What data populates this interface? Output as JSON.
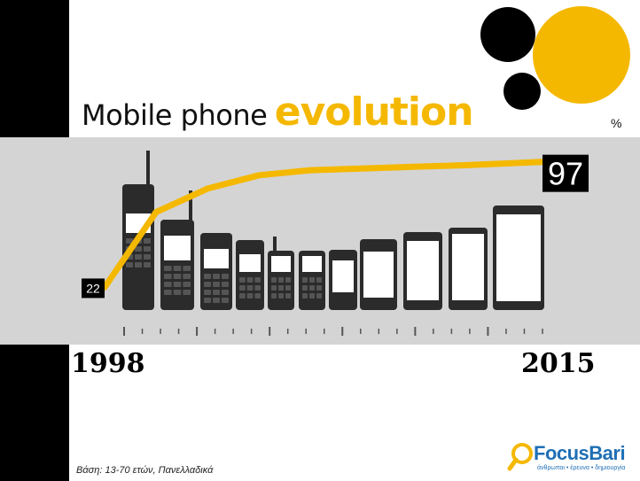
{
  "title": {
    "part1": "Mobile phone",
    "part2": "evolution"
  },
  "unit": "%",
  "footnote": "Βάση: 13-70 ετών, Πανελλαδικά",
  "logo": {
    "name": "FocusBari",
    "tagline": "άνθρωποι • έρευνα • δημιουργία"
  },
  "colors": {
    "accent": "#f5b800",
    "band": "#d4d4d4",
    "phone": "#2b2b2b",
    "text": "#000000"
  },
  "chart_data": {
    "type": "line",
    "title": "Mobile phone evolution",
    "x_start_label": "1998",
    "x_end_label": "2015",
    "xlim": [
      1998,
      2015
    ],
    "ylim": [
      0,
      100
    ],
    "grid": false,
    "series": [
      {
        "x": [
          1998,
          2000,
          2002,
          2004,
          2006,
          2008,
          2010,
          2012,
          2015
        ],
        "values": [
          22,
          67,
          81,
          89,
          92,
          93,
          94,
          95,
          97
        ]
      }
    ],
    "data_labels": [
      {
        "x": 1998,
        "text": "22"
      },
      {
        "x": 2015,
        "text": "97"
      }
    ]
  }
}
